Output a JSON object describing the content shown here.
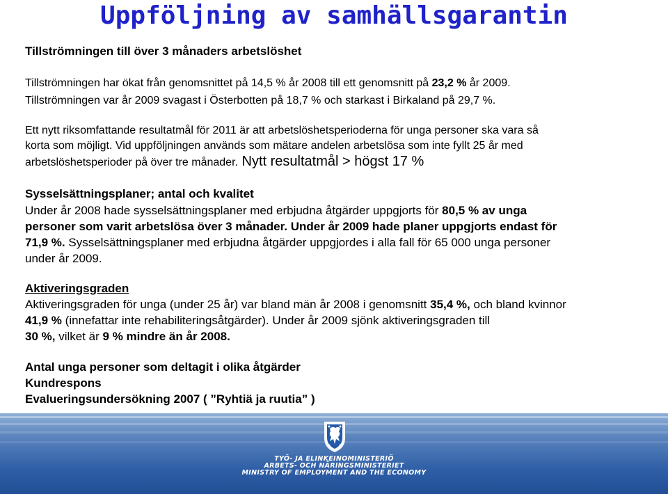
{
  "title": "Uppföljning av samhällsgarantin",
  "section1": {
    "heading": "Tillströmningen till över  3 månaders arbetslöshet",
    "line1_a": "Tillströmningen har ökat från genomsnittet på 14,5 % år 2008 till ett genomsnitt på ",
    "line1_b": "23,2 %",
    "line1_c": " år 2009.",
    "line2": "Tillströmningen  var år 2009 svagast i Österbotten på 18,7 % och starkast i Birkaland på 29,7 %.",
    "para_1": "Ett nytt riksomfattande resultatmål för 2011 är att arbetslöshetsperioderna för unga personer ska vara så",
    "para_2": "korta som möjligt. Vid uppföljningen används som mätare andelen arbetslösa som inte fyllt 25 år med",
    "para_3": "arbetslöshetsperioder på över tre månader.",
    "para_big": " Nytt resultatmål > högst 17 %"
  },
  "section2": {
    "heading": "Sysselsättningsplaner; antal och kvalitet",
    "l1_a": "Under år 2008 hade sysselsättningsplaner med erbjudna åtgärder uppgjorts för ",
    "l1_b": "80,5 % av unga",
    "l2": "personer som varit arbetslösa över 3 månader. Under år 2009 hade planer uppgjorts endast för",
    "l3_a": "71,9 %.",
    "l3_b": " Sysselsättningsplaner med erbjudna åtgärder uppgjordes i alla fall för 65 000 unga personer",
    "l4": "under år 2009."
  },
  "section3": {
    "heading": "Aktiveringsgraden",
    "l1_a": "Aktiveringsgraden för unga (under 25 år) var bland män år 2008 i genomsnitt ",
    "l1_b": "35,4 %,",
    "l1_c": " och bland kvinnor",
    "l2_a": "41,9 %",
    "l2_b": " (innefattar inte rehabiliteringsåtgärder). Under år 2009 sjönk aktiveringsgraden till",
    "l3_a": "30 %,",
    "l3_b": " vilket är ",
    "l3_c": "9 % mindre än år 2008."
  },
  "section4": {
    "line1": "Antal unga personer som deltagit i olika åtgärder",
    "line2": "Kundrespons",
    "line3": "Evalueringsundersökning 2007 ( ”Ryhtiä ja ruutia” )"
  },
  "footer": {
    "ministry_fi": "TYÖ- JA ELINKEINOMINISTERIÖ",
    "ministry_sv": "ARBETS- OCH NÄRINGSMINISTERIET",
    "ministry_en": "MINISTRY OF EMPLOYMENT AND THE ECONOMY"
  },
  "colors": {
    "title": "#1f22c8",
    "footer": "#2e5ea6"
  },
  "icons": {
    "emblem": "lion-coat-of-arms-icon"
  }
}
